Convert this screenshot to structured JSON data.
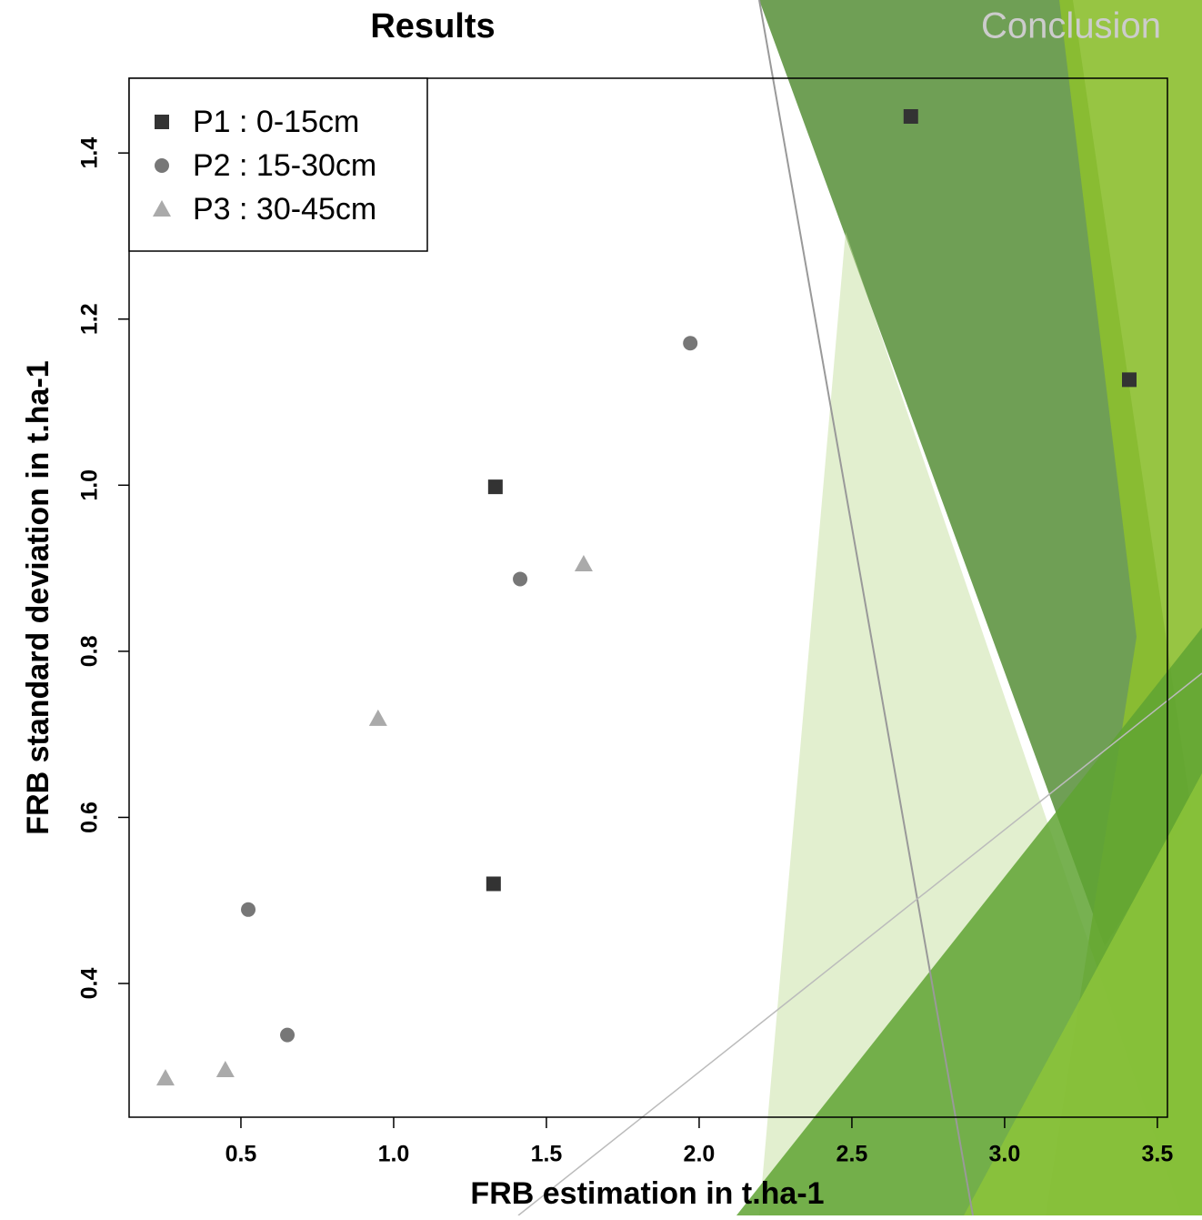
{
  "header": {
    "title": "Results",
    "next_section": "Conclusion"
  },
  "chart_data": {
    "type": "scatter",
    "xlabel": "FRB estimation in t.ha-1",
    "ylabel": "FRB standard deviation in t.ha-1",
    "xlim": [
      0.134,
      3.533
    ],
    "ylim": [
      0.239,
      1.49
    ],
    "xticks": [
      0.5,
      {
        "value": 1,
        "label": "1.0"
      },
      1.5,
      {
        "value": 2,
        "label": "2.0"
      },
      2.5,
      {
        "value": 3,
        "label": "3.0"
      },
      3.5
    ],
    "yticks": [
      0.4,
      0.6,
      0.8,
      {
        "value": 1,
        "label": "1.0"
      },
      1.2,
      1.4
    ],
    "legend": "top-left",
    "series": [
      {
        "name": "P1 : 0-15cm",
        "color": "#333333",
        "marker": "square",
        "x": [
          2.693,
          3.408,
          1.333,
          1.327
        ],
        "values": [
          1.444,
          1.127,
          0.998,
          0.52
        ]
      },
      {
        "name": "P2 : 15-30cm",
        "color": "#777777",
        "marker": "circle",
        "x": [
          1.971,
          1.414,
          0.524,
          0.652
        ],
        "values": [
          1.171,
          0.887,
          0.489,
          0.338
        ]
      },
      {
        "name": "P3 : 30-45cm",
        "color": "#aaaaaa",
        "marker": "triangle",
        "x": [
          1.622,
          0.949,
          0.449,
          0.253
        ],
        "values": [
          0.905,
          0.719,
          0.296,
          0.286
        ]
      }
    ]
  }
}
